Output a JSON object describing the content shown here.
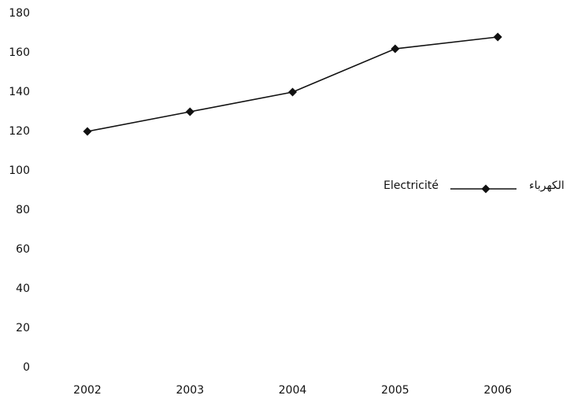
{
  "chart_data": {
    "type": "line",
    "categories": [
      "2002",
      "2003",
      "2004",
      "2005",
      "2006"
    ],
    "series": [
      {
        "name": "Electricité",
        "name_ar": "الكهرباء",
        "color": "#111111",
        "values": [
          120,
          130,
          140,
          162,
          168
        ]
      }
    ],
    "ylim": [
      0,
      180
    ],
    "yticks": [
      0,
      20,
      40,
      60,
      80,
      100,
      120,
      140,
      160,
      180
    ],
    "grid": false,
    "legend": "right"
  }
}
